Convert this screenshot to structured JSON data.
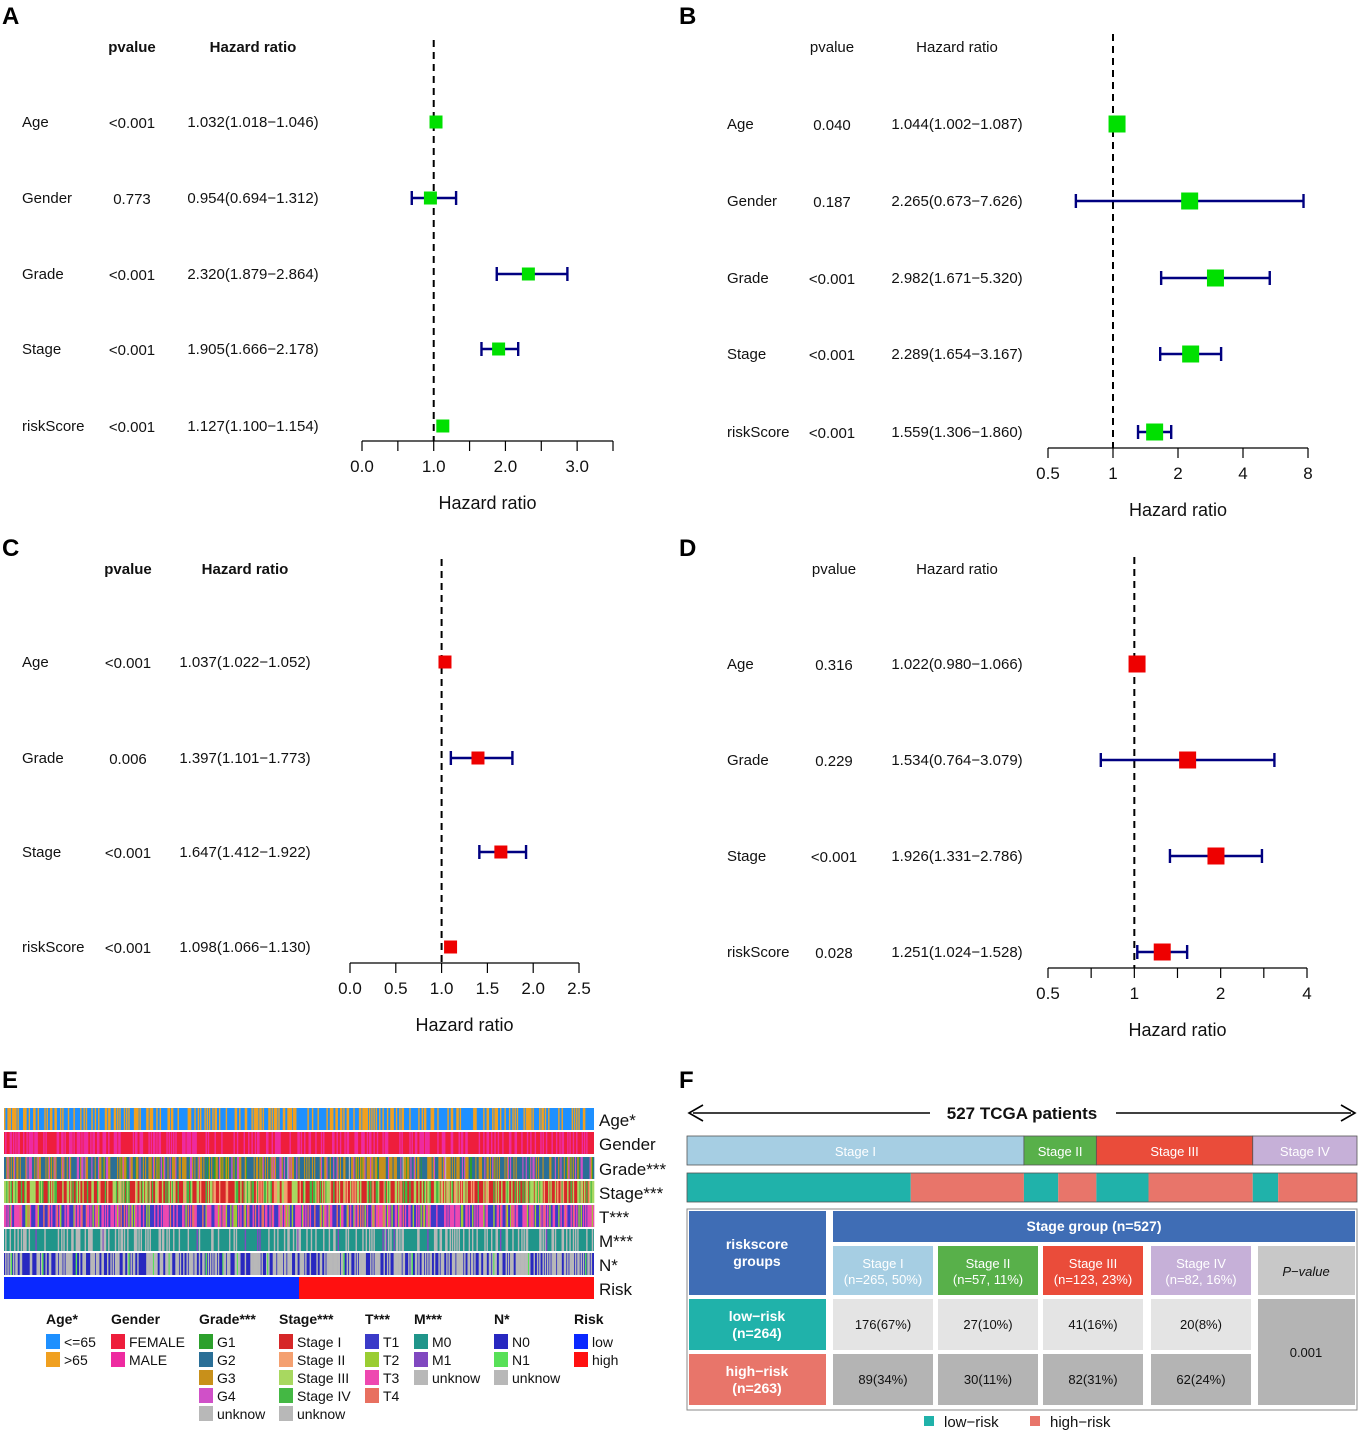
{
  "colors": {
    "green_box": "#00e000",
    "red_box": "#ee0000",
    "ci_line": "#000080",
    "low": "#20b2aa",
    "high": "#e8756a"
  },
  "chart_data": [
    {
      "panel": "A",
      "type": "forest",
      "scale": "linear",
      "box_color": "green",
      "xlabel": "Hazard ratio",
      "xlim": [
        0,
        3.5
      ],
      "ticks": [
        0,
        0.5,
        1,
        1.5,
        2,
        2.5,
        3,
        3.5
      ],
      "tick_labels": [
        {
          "v": 0,
          "t": "0.0"
        },
        {
          "v": 1,
          "t": "1.0"
        },
        {
          "v": 2,
          "t": "2.0"
        },
        {
          "v": 3,
          "t": "3.0"
        }
      ],
      "ref": 1,
      "col_pvalue": "pvalue",
      "col_hr": "Hazard ratio",
      "bold_headers": true,
      "rows": [
        {
          "label": "Age",
          "p": "<0.001",
          "hr_text": "1.032(1.018−1.046)",
          "hr": 1.032,
          "lo": 1.018,
          "hi": 1.046
        },
        {
          "label": "Gender",
          "p": "0.773",
          "hr_text": "0.954(0.694−1.312)",
          "hr": 0.954,
          "lo": 0.694,
          "hi": 1.312
        },
        {
          "label": "Grade",
          "p": "<0.001",
          "hr_text": "2.320(1.879−2.864)",
          "hr": 2.32,
          "lo": 1.879,
          "hi": 2.864
        },
        {
          "label": "Stage",
          "p": "<0.001",
          "hr_text": "1.905(1.666−2.178)",
          "hr": 1.905,
          "lo": 1.666,
          "hi": 2.178
        },
        {
          "label": "riskScore",
          "p": "<0.001",
          "hr_text": "1.127(1.100−1.154)",
          "hr": 1.127,
          "lo": 1.1,
          "hi": 1.154
        }
      ]
    },
    {
      "panel": "B",
      "type": "forest",
      "scale": "log2",
      "box_color": "green",
      "xlabel": "Hazard ratio",
      "xlim": [
        0.5,
        8
      ],
      "ticks": [
        0.5,
        1,
        2,
        4,
        8
      ],
      "tick_labels": [
        {
          "v": 0.5,
          "t": "0.5"
        },
        {
          "v": 1,
          "t": "1"
        },
        {
          "v": 2,
          "t": "2"
        },
        {
          "v": 4,
          "t": "4"
        },
        {
          "v": 8,
          "t": "8"
        }
      ],
      "ref": 1,
      "col_pvalue": "pvalue",
      "col_hr": "Hazard ratio",
      "bold_headers": false,
      "rows": [
        {
          "label": "Age",
          "p": "0.040",
          "hr_text": "1.044(1.002−1.087)",
          "hr": 1.044,
          "lo": 1.002,
          "hi": 1.087
        },
        {
          "label": "Gender",
          "p": "0.187",
          "hr_text": "2.265(0.673−7.626)",
          "hr": 2.265,
          "lo": 0.673,
          "hi": 7.626
        },
        {
          "label": "Grade",
          "p": "<0.001",
          "hr_text": "2.982(1.671−5.320)",
          "hr": 2.982,
          "lo": 1.671,
          "hi": 5.32
        },
        {
          "label": "Stage",
          "p": "<0.001",
          "hr_text": "2.289(1.654−3.167)",
          "hr": 2.289,
          "lo": 1.654,
          "hi": 3.167
        },
        {
          "label": "riskScore",
          "p": "<0.001",
          "hr_text": "1.559(1.306−1.860)",
          "hr": 1.559,
          "lo": 1.306,
          "hi": 1.86
        }
      ]
    },
    {
      "panel": "C",
      "type": "forest",
      "scale": "linear",
      "box_color": "red",
      "xlabel": "Hazard ratio",
      "xlim": [
        0,
        2.5
      ],
      "ticks": [
        0,
        0.5,
        1,
        1.5,
        2,
        2.5
      ],
      "tick_labels": [
        {
          "v": 0,
          "t": "0.0"
        },
        {
          "v": 0.5,
          "t": "0.5"
        },
        {
          "v": 1,
          "t": "1.0"
        },
        {
          "v": 1.5,
          "t": "1.5"
        },
        {
          "v": 2,
          "t": "2.0"
        },
        {
          "v": 2.5,
          "t": "2.5"
        }
      ],
      "ref": 1,
      "col_pvalue": "pvalue",
      "col_hr": "Hazard ratio",
      "bold_headers": true,
      "rows": [
        {
          "label": "Age",
          "p": "<0.001",
          "hr_text": "1.037(1.022−1.052)",
          "hr": 1.037,
          "lo": 1.022,
          "hi": 1.052
        },
        {
          "label": "Grade",
          "p": "0.006",
          "hr_text": "1.397(1.101−1.773)",
          "hr": 1.397,
          "lo": 1.101,
          "hi": 1.773
        },
        {
          "label": "Stage",
          "p": "<0.001",
          "hr_text": "1.647(1.412−1.922)",
          "hr": 1.647,
          "lo": 1.412,
          "hi": 1.922
        },
        {
          "label": "riskScore",
          "p": "<0.001",
          "hr_text": "1.098(1.066−1.130)",
          "hr": 1.098,
          "lo": 1.066,
          "hi": 1.13
        }
      ]
    },
    {
      "panel": "D",
      "type": "forest",
      "scale": "log2",
      "box_color": "red",
      "xlabel": "Hazard ratio",
      "xlim": [
        0.5,
        4
      ],
      "ticks": [
        0.5,
        0.707,
        1,
        1.414,
        2,
        2.828,
        4
      ],
      "tick_labels": [
        {
          "v": 0.5,
          "t": "0.5"
        },
        {
          "v": 1,
          "t": "1"
        },
        {
          "v": 2,
          "t": "2"
        },
        {
          "v": 4,
          "t": "4"
        }
      ],
      "ref": 1,
      "col_pvalue": "pvalue",
      "col_hr": "Hazard ratio",
      "bold_headers": false,
      "rows": [
        {
          "label": "Age",
          "p": "0.316",
          "hr_text": "1.022(0.980−1.066)",
          "hr": 1.022,
          "lo": 0.98,
          "hi": 1.066
        },
        {
          "label": "Grade",
          "p": "0.229",
          "hr_text": "1.534(0.764−3.079)",
          "hr": 1.534,
          "lo": 0.764,
          "hi": 3.079
        },
        {
          "label": "Stage",
          "p": "<0.001",
          "hr_text": "1.926(1.331−2.786)",
          "hr": 1.926,
          "lo": 1.331,
          "hi": 2.786
        },
        {
          "label": "riskScore",
          "p": "0.028",
          "hr_text": "1.251(1.024−1.528)",
          "hr": 1.251,
          "lo": 1.024,
          "hi": 1.528
        }
      ]
    },
    {
      "panel": "E",
      "type": "heatmap",
      "tracks": [
        {
          "label": "Age*",
          "palette": [
            "#1e90ff",
            "#f0a020"
          ],
          "weights": [
            0.65,
            0.35
          ]
        },
        {
          "label": "Gender",
          "palette": [
            "#ee1e3c",
            "#ee2ba0"
          ],
          "weights": [
            0.65,
            0.35
          ]
        },
        {
          "label": "Grade***",
          "palette": [
            "#2ca02c",
            "#2a6f97",
            "#c8901a",
            "#d050c8",
            "#b8b8b8"
          ],
          "weights": [
            0.05,
            0.42,
            0.38,
            0.14,
            0.01
          ]
        },
        {
          "label": "Stage***",
          "palette": [
            "#d62728",
            "#f4a070",
            "#a8d860",
            "#44b844",
            "#b8b8b8"
          ],
          "weights": [
            0.5,
            0.1,
            0.25,
            0.15,
            0.0
          ]
        },
        {
          "label": "T***",
          "palette": [
            "#3b3bc8",
            "#9acd32",
            "#ee48b0",
            "#e87060"
          ],
          "weights": [
            0.5,
            0.12,
            0.33,
            0.05
          ]
        },
        {
          "label": "M***",
          "palette": [
            "#20958a",
            "#8048c0",
            "#b8b8b8"
          ],
          "weights": [
            0.72,
            0.03,
            0.25
          ]
        },
        {
          "label": "N*",
          "palette": [
            "#2828c0",
            "#58e058",
            "#b8b8b8"
          ],
          "weights": [
            0.45,
            0.03,
            0.52
          ]
        },
        {
          "label": "Risk",
          "palette": [
            "#0a28ff",
            "#ff1010"
          ],
          "split": 0.5
        }
      ],
      "legend": [
        {
          "title": "Age*",
          "items": [
            {
              "c": "#1e90ff",
              "t": "<=65"
            },
            {
              "c": "#f0a020",
              "t": ">65"
            }
          ]
        },
        {
          "title": "Gender",
          "items": [
            {
              "c": "#ee1e3c",
              "t": "FEMALE"
            },
            {
              "c": "#ee2ba0",
              "t": "MALE"
            }
          ]
        },
        {
          "title": "Grade***",
          "items": [
            {
              "c": "#2ca02c",
              "t": "G1"
            },
            {
              "c": "#2a6f97",
              "t": "G2"
            },
            {
              "c": "#c8901a",
              "t": "G3"
            },
            {
              "c": "#d050c8",
              "t": "G4"
            },
            {
              "c": "#b8b8b8",
              "t": "unknow"
            }
          ]
        },
        {
          "title": "Stage***",
          "items": [
            {
              "c": "#d62728",
              "t": "Stage I"
            },
            {
              "c": "#f4a070",
              "t": "Stage II"
            },
            {
              "c": "#a8d860",
              "t": "Stage III"
            },
            {
              "c": "#44b844",
              "t": "Stage IV"
            },
            {
              "c": "#b8b8b8",
              "t": "unknow"
            }
          ]
        },
        {
          "title": "T***",
          "items": [
            {
              "c": "#3b3bc8",
              "t": "T1"
            },
            {
              "c": "#9acd32",
              "t": "T2"
            },
            {
              "c": "#ee48b0",
              "t": "T3"
            },
            {
              "c": "#e87060",
              "t": "T4"
            }
          ]
        },
        {
          "title": "M***",
          "items": [
            {
              "c": "#20958a",
              "t": "M0"
            },
            {
              "c": "#8048c0",
              "t": "M1"
            },
            {
              "c": "#b8b8b8",
              "t": "unknow"
            }
          ]
        },
        {
          "title": "N*",
          "items": [
            {
              "c": "#2828c0",
              "t": "N0"
            },
            {
              "c": "#58e058",
              "t": "N1"
            },
            {
              "c": "#b8b8b8",
              "t": "unknow"
            }
          ]
        },
        {
          "title": "Risk",
          "items": [
            {
              "c": "#0a28ff",
              "t": "low"
            },
            {
              "c": "#ff1010",
              "t": "high"
            }
          ]
        }
      ]
    },
    {
      "panel": "F",
      "type": "table",
      "title": "527 TCGA patients",
      "stages": [
        {
          "t": "Stage I",
          "n": 265,
          "c": "#a6cee3"
        },
        {
          "t": "Stage II",
          "n": 57,
          "c": "#58b04a"
        },
        {
          "t": "Stage III",
          "n": 123,
          "c": "#ea4c3a"
        },
        {
          "t": "Stage IV",
          "n": 82,
          "c": "#c6b0d8"
        }
      ],
      "group_header": "Stage group (n=527)",
      "row_header": "riskscore groups",
      "col_headers": [
        "Stage I (n=265, 50%)",
        "Stage II (n=57, 11%)",
        "Stage III (n=123, 23%)",
        "Stage IV (n=82, 16%)"
      ],
      "pvalue_header": "P−value",
      "pvalue": "0.001",
      "rows": [
        {
          "label": "low−risk (n=264)",
          "color": "#20b2aa",
          "cells": [
            "176(67%)",
            "27(10%)",
            "41(16%)",
            "20(8%)"
          ],
          "counts": [
            176,
            27,
            41,
            20
          ]
        },
        {
          "label": "high−risk (n=263)",
          "color": "#e8756a",
          "cells": [
            "89(34%)",
            "30(11%)",
            "82(31%)",
            "62(24%)"
          ],
          "counts": [
            89,
            30,
            82,
            62
          ]
        }
      ],
      "legend": [
        {
          "c": "#20b2aa",
          "t": "low−risk"
        },
        {
          "c": "#e8756a",
          "t": "high−risk"
        }
      ]
    }
  ]
}
